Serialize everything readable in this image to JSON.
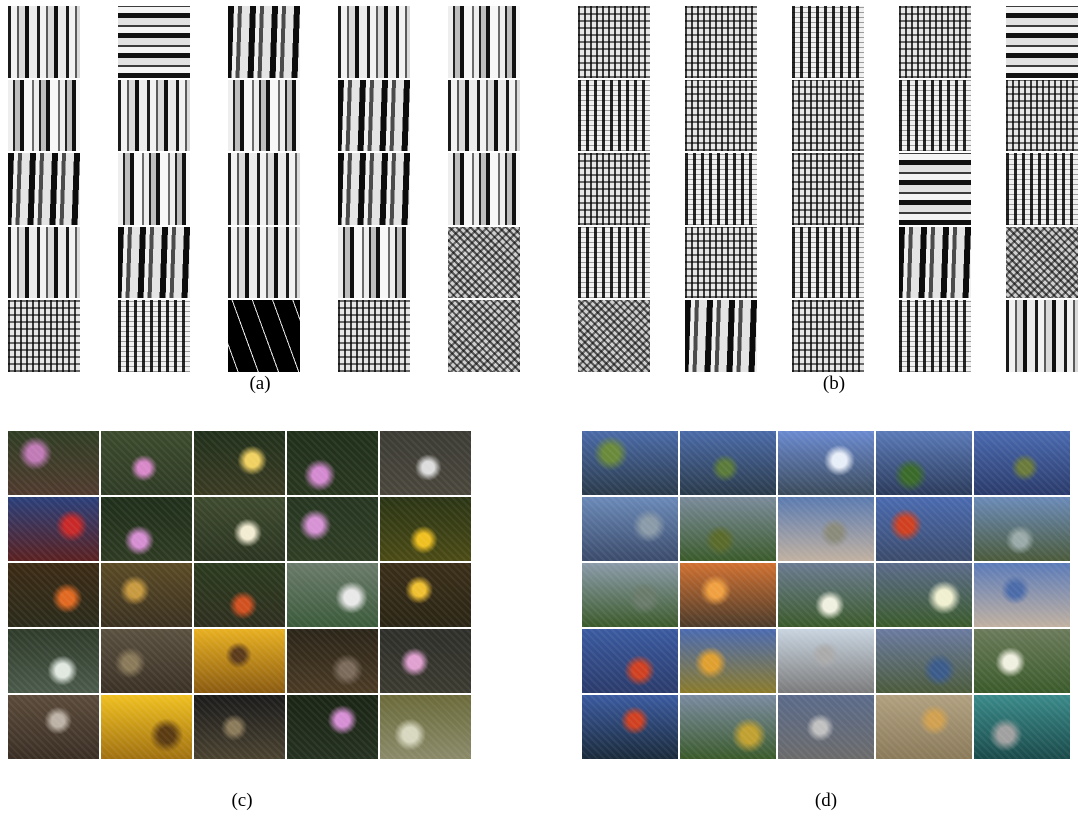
{
  "panels": [
    {
      "id": "a",
      "caption": "(a)",
      "kind": "texture",
      "tiles": [
        "t-v",
        "t-h",
        "t-v3",
        "t-v",
        "t-v2",
        "t-v2",
        "t-v",
        "t-v2",
        "t-v3",
        "t-v",
        "t-v3",
        "t-v2",
        "t-v",
        "t-v3",
        "t-v2",
        "t-v",
        "t-v3",
        "t-v",
        "t-v2",
        "t-noise",
        "t-grid",
        "t-grid2",
        "t-dark",
        "t-grid",
        "t-noise"
      ]
    },
    {
      "id": "b",
      "caption": "(b)",
      "kind": "texture",
      "tiles": [
        "t-grid",
        "t-grid",
        "t-grid2",
        "t-grid",
        "t-h",
        "t-grid2",
        "t-grid",
        "t-grid",
        "t-grid2",
        "t-grid",
        "t-grid",
        "t-grid2",
        "t-grid",
        "t-h",
        "t-grid2",
        "t-grid2",
        "t-grid",
        "t-grid2",
        "t-v3",
        "t-noise",
        "t-noise",
        "t-v3",
        "t-grid",
        "t-grid2",
        "t-v"
      ]
    },
    {
      "id": "c",
      "caption": "(c)",
      "kind": "photo",
      "tiles": [
        {
          "top": "#2f3d24",
          "bottom": "#4f3a2e",
          "spot": "#c07ab6"
        },
        {
          "top": "#3b4a2c",
          "bottom": "#2f3b25",
          "spot": "#d888c9"
        },
        {
          "top": "#20301b",
          "bottom": "#3a3a22",
          "spot": "#f0d060"
        },
        {
          "top": "#1f2f1a",
          "bottom": "#28361f",
          "spot": "#d48ad0"
        },
        {
          "top": "#3b3b34",
          "bottom": "#4a463c",
          "spot": "#dcdcdc"
        },
        {
          "top": "#2a3f7a",
          "bottom": "#5a2020",
          "spot": "#c82828"
        },
        {
          "top": "#1e2e1a",
          "bottom": "#2e3a22",
          "spot": "#d68ed2"
        },
        {
          "top": "#3e4a2e",
          "bottom": "#2a3420",
          "spot": "#f2ecd2"
        },
        {
          "top": "#253520",
          "bottom": "#2f3d24",
          "spot": "#d692d4"
        },
        {
          "top": "#2a3414",
          "bottom": "#4a4a14",
          "spot": "#f0c020"
        },
        {
          "top": "#3b2a14",
          "bottom": "#2a2a1a",
          "spot": "#e06820"
        },
        {
          "top": "#5a4a24",
          "bottom": "#3a3020",
          "spot": "#c89a40"
        },
        {
          "top": "#2a3a1e",
          "bottom": "#2e2e1e",
          "spot": "#d05020"
        },
        {
          "top": "#6a7a6a",
          "bottom": "#3a5a3a",
          "spot": "#e8e8e8"
        },
        {
          "top": "#3a2e18",
          "bottom": "#2a2414",
          "spot": "#f0c030"
        },
        {
          "top": "#2e3a2a",
          "bottom": "#4a5a4a",
          "spot": "#e0e8e0"
        },
        {
          "top": "#5a5040",
          "bottom": "#3a3024",
          "spot": "#8a7a5a"
        },
        {
          "top": "#e8b020",
          "bottom": "#8a5a10",
          "spot": "#5a3a1a"
        },
        {
          "top": "#2a2418",
          "bottom": "#4a3a24",
          "spot": "#7a6a5a"
        },
        {
          "top": "#2e2e2a",
          "bottom": "#3a3a30",
          "spot": "#e0a0d0"
        },
        {
          "top": "#5a4a3a",
          "bottom": "#3a2e24",
          "spot": "#bdb2a6"
        },
        {
          "top": "#f0c020",
          "bottom": "#a07010",
          "spot": "#5a3a10"
        },
        {
          "top": "#1a1a1a",
          "bottom": "#4a4230",
          "spot": "#8a7a5a"
        },
        {
          "top": "#1a2414",
          "bottom": "#243020",
          "spot": "#d68ed4"
        },
        {
          "top": "#6a6a3a",
          "bottom": "#8a8a6a",
          "spot": "#d8d8c0"
        }
      ]
    },
    {
      "id": "d",
      "caption": "(d)",
      "kind": "photo",
      "tiles": [
        {
          "top": "#4a6aa8",
          "bottom": "#2a3a4a",
          "spot": "#6a8a3a"
        },
        {
          "top": "#4a6aa8",
          "bottom": "#2a3a4a",
          "spot": "#5a7a3a"
        },
        {
          "top": "#6a8ad0",
          "bottom": "#3a4a5a",
          "spot": "#e8eef8"
        },
        {
          "top": "#5a7ab8",
          "bottom": "#2a3a5a",
          "spot": "#3a6a2a"
        },
        {
          "top": "#4a6ab0",
          "bottom": "#2a3a6a",
          "spot": "#6a7a3a"
        },
        {
          "top": "#6a8ab8",
          "bottom": "#3a4a6a",
          "spot": "#8a9aa8"
        },
        {
          "top": "#7a8a9a",
          "bottom": "#3a5a2a",
          "spot": "#5a6a2a"
        },
        {
          "top": "#5a7ab0",
          "bottom": "#c0b0a0",
          "spot": "#8a8a7a"
        },
        {
          "top": "#4a6ab0",
          "bottom": "#3a4a6a",
          "spot": "#d04020"
        },
        {
          "top": "#6a8ab8",
          "bottom": "#4a5a3a",
          "spot": "#9aaaa8"
        },
        {
          "top": "#8a9aa8",
          "bottom": "#3a5a2a",
          "spot": "#6a7a6a"
        },
        {
          "top": "#d07030",
          "bottom": "#4a3a2a",
          "spot": "#f0a040"
        },
        {
          "top": "#6a7a90",
          "bottom": "#3a5a2a",
          "spot": "#f0f0e0"
        },
        {
          "top": "#5a6a8a",
          "bottom": "#3a5a2a",
          "spot": "#f0f0d0"
        },
        {
          "top": "#5a7ab8",
          "bottom": "#c0b0a0",
          "spot": "#4a6aa8"
        },
        {
          "top": "#3a5aa0",
          "bottom": "#2a3a6a",
          "spot": "#d04020"
        },
        {
          "top": "#4a6ab0",
          "bottom": "#8a7a2a",
          "spot": "#e0a030"
        },
        {
          "top": "#c8d4e0",
          "bottom": "#7a7a7a",
          "spot": "#aaaaaa"
        },
        {
          "top": "#6a7aa0",
          "bottom": "#4a5a3a",
          "spot": "#3a5a8a"
        },
        {
          "top": "#6a7a5a",
          "bottom": "#3a5a2a",
          "spot": "#f0f0e0"
        },
        {
          "top": "#3a5aa0",
          "bottom": "#1a2a3a",
          "spot": "#d04020"
        },
        {
          "top": "#7a8aa0",
          "bottom": "#3a5a2a",
          "spot": "#c0a030"
        },
        {
          "top": "#5a6a8a",
          "bottom": "#6a6a6a",
          "spot": "#c0c0c0"
        },
        {
          "top": "#b0a080",
          "bottom": "#8a7a5a",
          "spot": "#d0a050"
        },
        {
          "top": "#3a8a8a",
          "bottom": "#1a4a4a",
          "spot": "#a0a0a0"
        }
      ]
    }
  ]
}
